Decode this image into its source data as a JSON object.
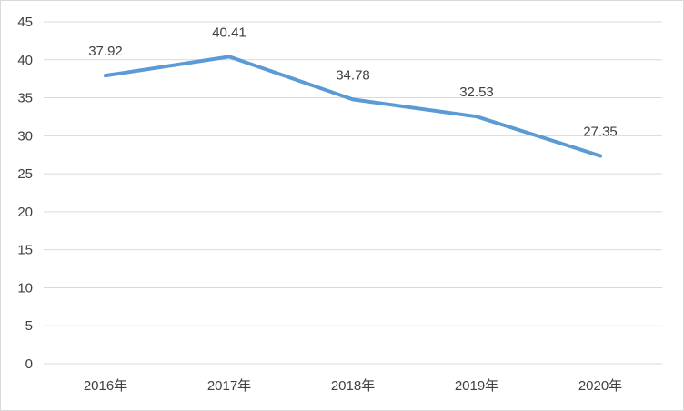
{
  "chart_data": {
    "type": "line",
    "title": "",
    "xlabel": "",
    "ylabel": "",
    "categories": [
      "2016年",
      "2017年",
      "2018年",
      "2019年",
      "2020年"
    ],
    "series": [
      {
        "values": [
          37.92,
          40.41,
          34.78,
          32.53,
          27.35
        ],
        "color": "#5b9bd5"
      }
    ],
    "data_labels": [
      "37.92",
      "40.41",
      "34.78",
      "32.53",
      "27.35"
    ],
    "y_ticks": [
      "0",
      "5",
      "10",
      "15",
      "20",
      "25",
      "30",
      "35",
      "40",
      "45"
    ],
    "ylim": [
      0,
      45
    ],
    "y_step": 5,
    "grid": true,
    "legend": "none"
  }
}
